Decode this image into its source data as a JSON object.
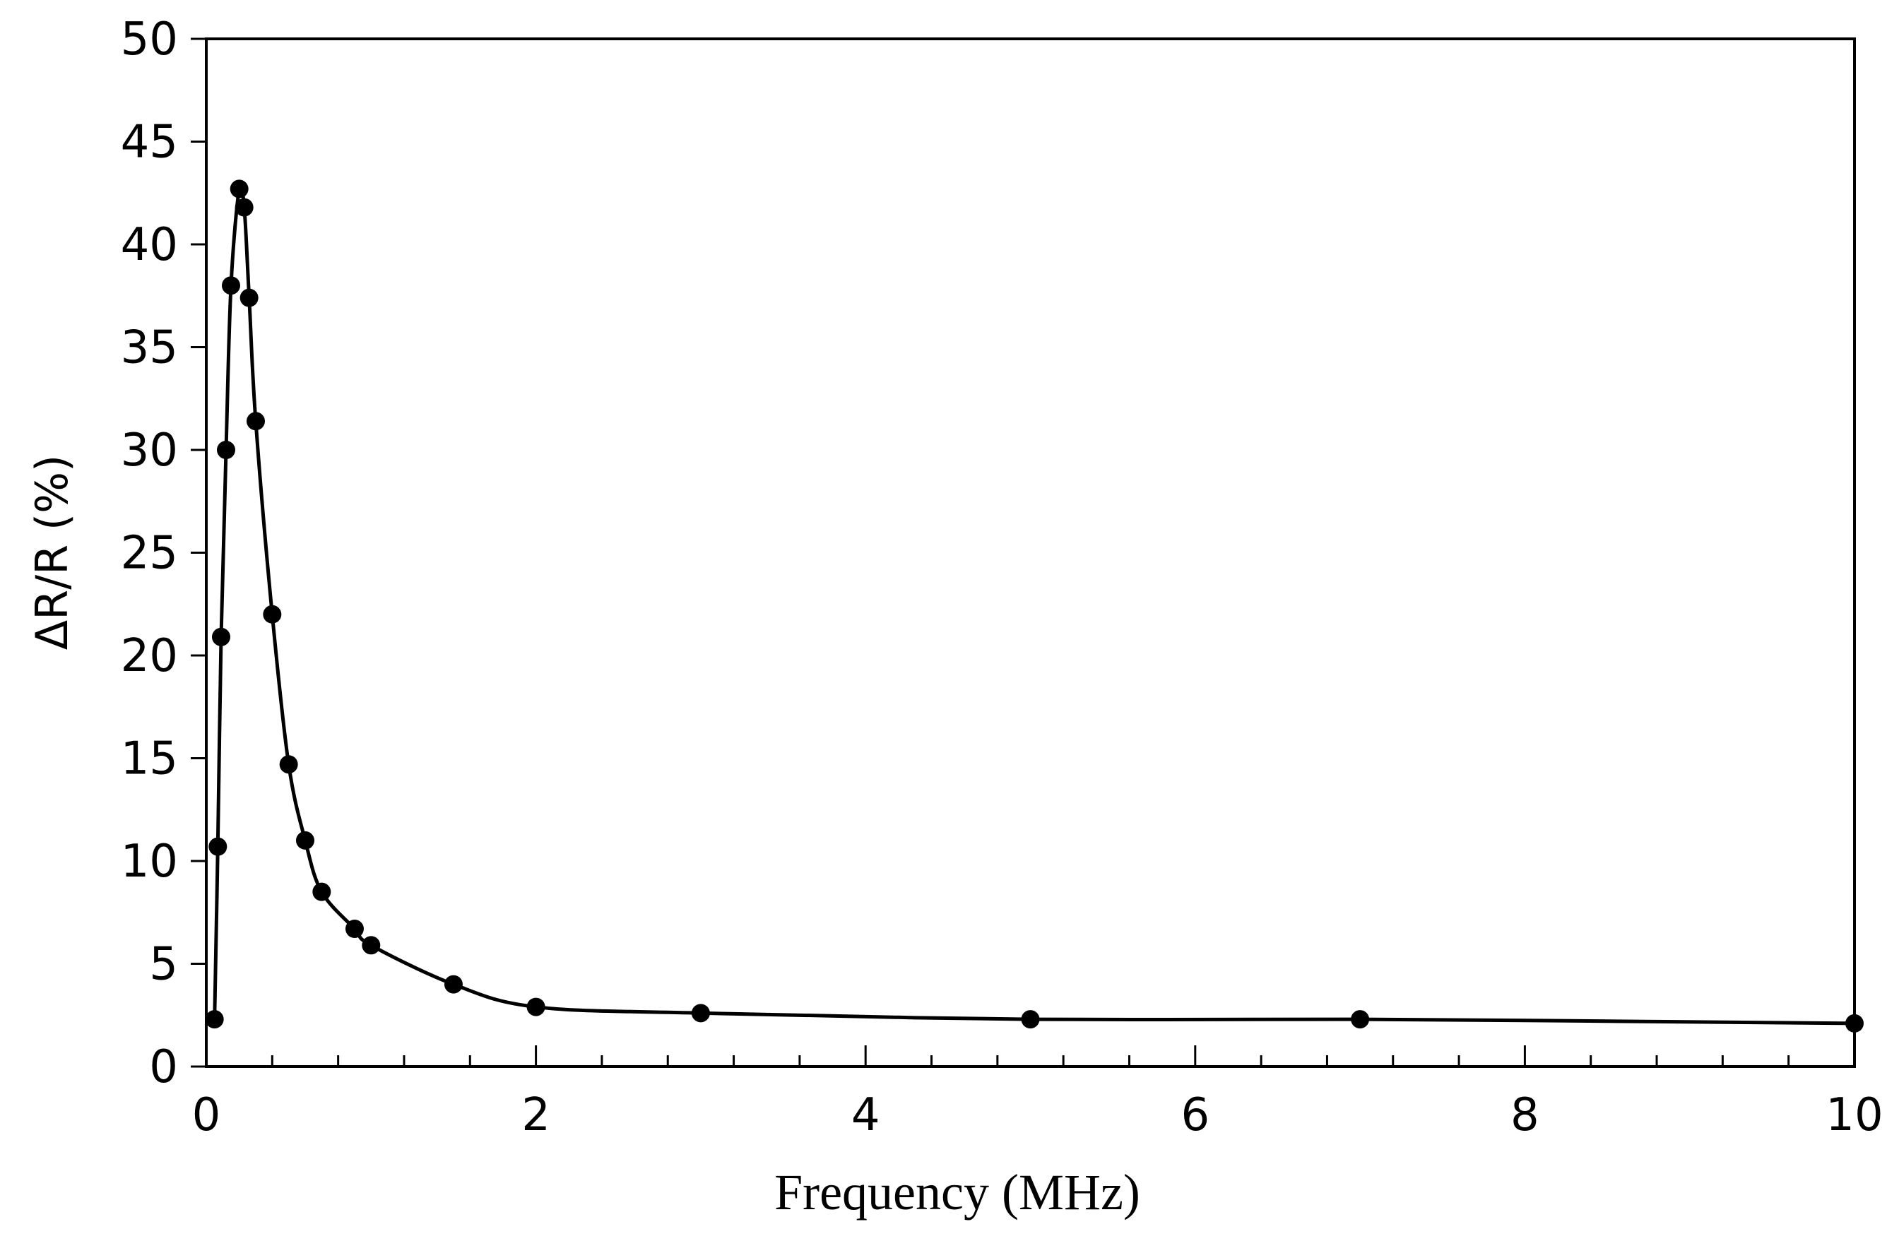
{
  "chart_data": {
    "type": "line",
    "title": "",
    "xlabel": "Frequency (MHz)",
    "ylabel": "ΔR/R (%)",
    "xlim": [
      0,
      10
    ],
    "ylim": [
      0,
      50
    ],
    "x_major_ticks": [
      0,
      2,
      4,
      6,
      8,
      10
    ],
    "x_minor_step": 0.4,
    "y_ticks": [
      0,
      5,
      10,
      15,
      20,
      25,
      30,
      35,
      40,
      45,
      50
    ],
    "grid": false,
    "legend": "none",
    "line_color": "#000000",
    "marker": "filled-circle",
    "series": [
      {
        "x": [
          0.05,
          0.07,
          0.09,
          0.12,
          0.15,
          0.2,
          0.23,
          0.26,
          0.3,
          0.4,
          0.5,
          0.6,
          0.7,
          0.9,
          1.0,
          1.5,
          2.0,
          3.0,
          5.0,
          7.0,
          10.0
        ],
        "y": [
          2.3,
          10.7,
          20.9,
          30.0,
          38.0,
          42.7,
          41.8,
          37.4,
          31.4,
          22.0,
          14.7,
          11.0,
          8.5,
          6.7,
          5.9,
          4.0,
          2.9,
          2.6,
          2.3,
          2.3,
          2.1
        ]
      }
    ]
  }
}
